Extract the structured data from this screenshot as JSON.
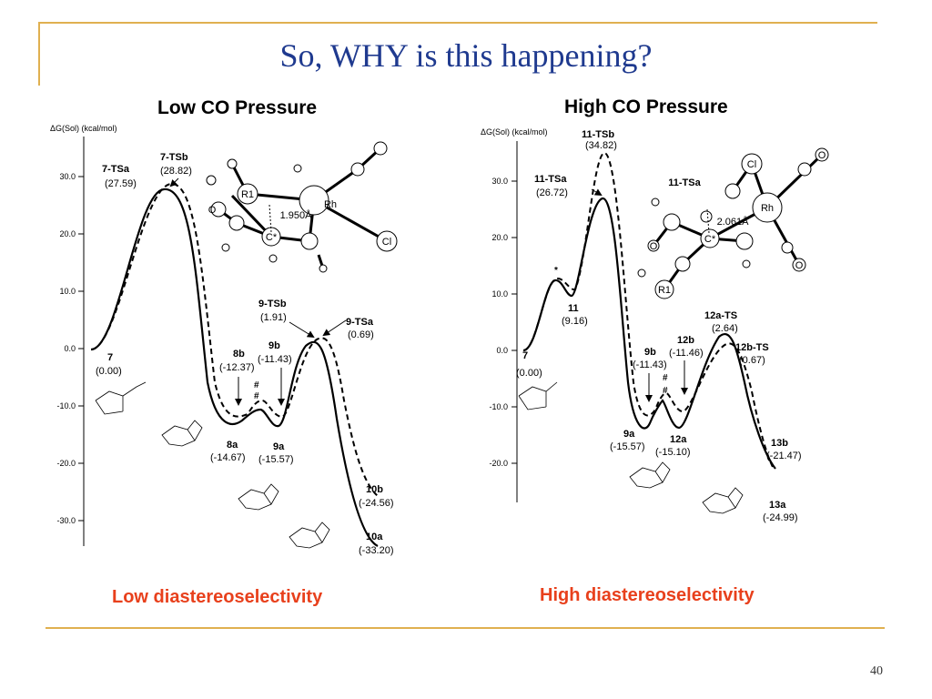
{
  "slide": {
    "title": "So, WHY is this happening?",
    "page_number": "40",
    "accent_color": "#e0b050",
    "title_color": "#1f3a8f",
    "conclusion_color": "#e8401c"
  },
  "left_panel": {
    "heading": "Low CO Pressure",
    "conclusion": "Low diastereoselectivity",
    "y_axis_label": "ΔG(Sol) (kcal/mol)",
    "y_ticks": [
      "30.0",
      "20.0",
      "10.0",
      "0.0",
      "-10.0",
      "-20.0",
      "-30.0"
    ],
    "species": [
      {
        "name": "7",
        "energy": "(0.00)"
      },
      {
        "name": "7-TSa",
        "energy": "(27.59)"
      },
      {
        "name": "7-TSb",
        "energy": "(28.82)"
      },
      {
        "name": "8b",
        "energy": "(-12.37)"
      },
      {
        "name": "9b",
        "energy": "(-11.43)"
      },
      {
        "name": "8a",
        "energy": "(-14.67)"
      },
      {
        "name": "9a",
        "energy": "(-15.57)"
      },
      {
        "name": "9-TSb",
        "energy": "(1.91)"
      },
      {
        "name": "9-TSa",
        "energy": "(0.69)"
      },
      {
        "name": "10b",
        "energy": "(-24.56)"
      },
      {
        "name": "10a",
        "energy": "(-33.20)"
      }
    ],
    "markers": [
      "#",
      "#"
    ],
    "molecule": {
      "atoms": [
        "R1",
        "O",
        "Rh",
        "C*",
        "Cl"
      ],
      "distance": "1.950Å"
    }
  },
  "right_panel": {
    "heading": "High CO Pressure",
    "conclusion": "High diastereoselectivity",
    "y_axis_label": "ΔG(Sol) (kcal/mol)",
    "y_ticks": [
      "30.0",
      "20.0",
      "10.0",
      "0.0",
      "-10.0",
      "-20.0"
    ],
    "species": [
      {
        "name": "7",
        "energy": "(0.00)"
      },
      {
        "name": "11",
        "energy": "(9.16)"
      },
      {
        "name": "11-TSa",
        "energy": "(26.72)"
      },
      {
        "name": "11-TSb",
        "energy": "(34.82)"
      },
      {
        "name": "9b",
        "energy": "(-11.43)"
      },
      {
        "name": "12b",
        "energy": "(-11.46)"
      },
      {
        "name": "9a",
        "energy": "(-15.57)"
      },
      {
        "name": "12a",
        "energy": "(-15.10)"
      },
      {
        "name": "12a-TS",
        "energy": "(2.64)"
      },
      {
        "name": "12b-TS",
        "energy": "(0.67)"
      },
      {
        "name": "13b",
        "energy": "(-21.47)"
      },
      {
        "name": "13a",
        "energy": "(-24.99)"
      }
    ],
    "markers": [
      "*",
      "#",
      "#"
    ],
    "molecule": {
      "atoms": [
        "Cl",
        "Rh",
        "O",
        "C*",
        "R1",
        "O",
        "O"
      ],
      "distance": "2.061Å",
      "label": "11-TSa"
    }
  }
}
